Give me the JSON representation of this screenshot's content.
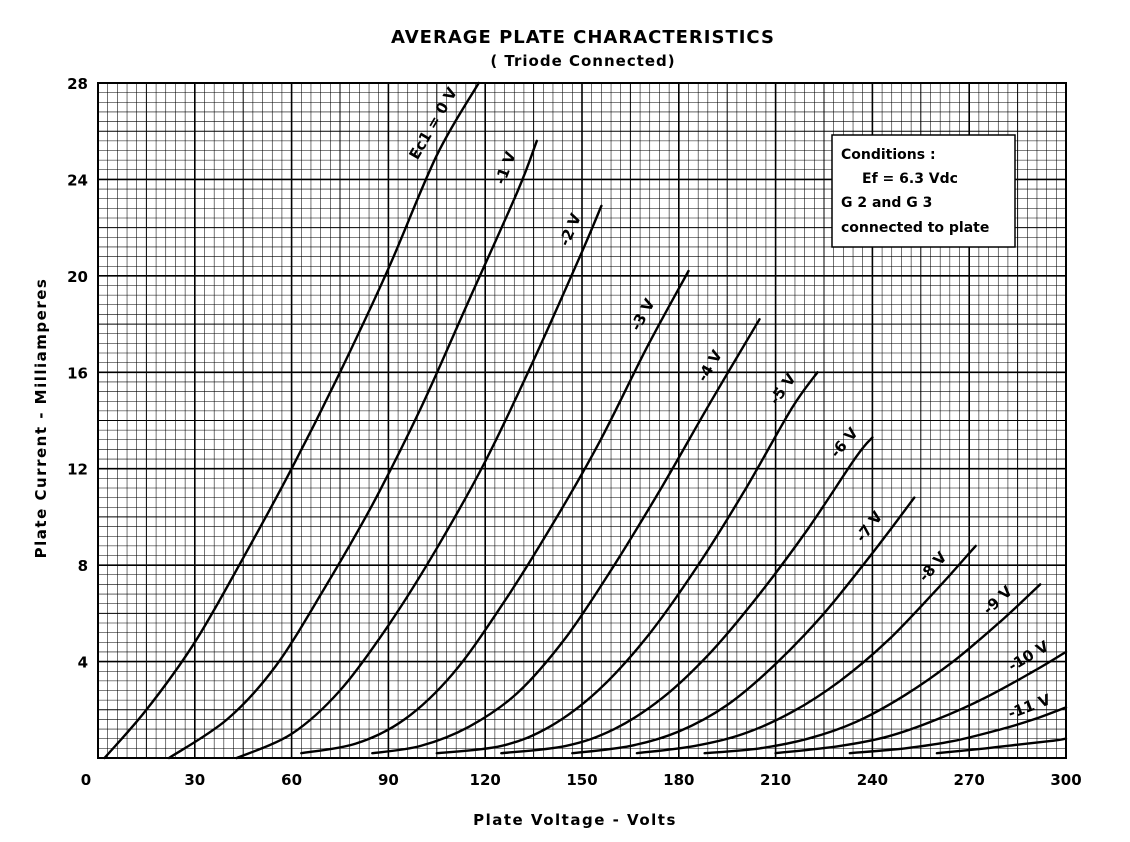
{
  "chart_data": {
    "type": "line",
    "title": "AVERAGE PLATE CHARACTERISTICS",
    "subtitle": "( Triode Connected)",
    "xlabel": "Plate Voltage - Volts",
    "ylabel": "Plate Current - Milliamperes",
    "xlim": [
      0,
      300
    ],
    "ylim": [
      0,
      28
    ],
    "x_ticks": [
      "0",
      "30",
      "60",
      "90",
      "120",
      "150",
      "180",
      "210",
      "240",
      "270",
      "300"
    ],
    "y_ticks": [
      "4",
      "8",
      "12",
      "16",
      "20",
      "24",
      "28"
    ],
    "grid": true,
    "annotation": {
      "heading": "Conditions :",
      "lines": [
        "Ef = 6.3 Vdc",
        "G 2 and G 3",
        "connected to plate"
      ]
    },
    "series": [
      {
        "name": "Ec1 = 0 V",
        "points": [
          [
            2,
            0
          ],
          [
            15,
            2
          ],
          [
            30,
            4.8
          ],
          [
            45,
            8.3
          ],
          [
            60,
            12
          ],
          [
            75,
            16
          ],
          [
            90,
            20.3
          ],
          [
            105,
            25
          ],
          [
            118,
            28
          ]
        ]
      },
      {
        "name": "-1 V",
        "points": [
          [
            22,
            0
          ],
          [
            40,
            1.6
          ],
          [
            55,
            3.8
          ],
          [
            70,
            7
          ],
          [
            85,
            10.5
          ],
          [
            100,
            14.5
          ],
          [
            115,
            19
          ],
          [
            130,
            23.5
          ],
          [
            136,
            25.6
          ]
        ]
      },
      {
        "name": "-2 V",
        "points": [
          [
            43,
            0
          ],
          [
            60,
            1
          ],
          [
            75,
            2.8
          ],
          [
            90,
            5.5
          ],
          [
            105,
            8.7
          ],
          [
            120,
            12.3
          ],
          [
            135,
            16.5
          ],
          [
            150,
            21
          ],
          [
            156,
            22.9
          ]
        ]
      },
      {
        "name": "-3 V",
        "points": [
          [
            63,
            0.2
          ],
          [
            80,
            0.6
          ],
          [
            95,
            1.6
          ],
          [
            110,
            3.5
          ],
          [
            125,
            6.3
          ],
          [
            140,
            9.5
          ],
          [
            155,
            13
          ],
          [
            170,
            17
          ],
          [
            183,
            20.2
          ]
        ]
      },
      {
        "name": "-4 V",
        "points": [
          [
            85,
            0.2
          ],
          [
            100,
            0.5
          ],
          [
            115,
            1.3
          ],
          [
            130,
            2.7
          ],
          [
            145,
            5
          ],
          [
            160,
            8
          ],
          [
            175,
            11.3
          ],
          [
            190,
            14.8
          ],
          [
            205,
            18.2
          ]
        ]
      },
      {
        "name": "-5 V",
        "points": [
          [
            105,
            0.2
          ],
          [
            125,
            0.5
          ],
          [
            140,
            1.3
          ],
          [
            155,
            2.8
          ],
          [
            170,
            5
          ],
          [
            185,
            7.8
          ],
          [
            200,
            11
          ],
          [
            215,
            14.5
          ],
          [
            223,
            16
          ]
        ]
      },
      {
        "name": "-6 V",
        "points": [
          [
            125,
            0.2
          ],
          [
            145,
            0.5
          ],
          [
            160,
            1.2
          ],
          [
            175,
            2.5
          ],
          [
            190,
            4.4
          ],
          [
            205,
            6.8
          ],
          [
            220,
            9.5
          ],
          [
            235,
            12.5
          ],
          [
            240,
            13.3
          ]
        ]
      },
      {
        "name": "-7 V",
        "points": [
          [
            147,
            0.2
          ],
          [
            165,
            0.5
          ],
          [
            180,
            1.1
          ],
          [
            195,
            2.2
          ],
          [
            210,
            3.9
          ],
          [
            225,
            6
          ],
          [
            240,
            8.5
          ],
          [
            253,
            10.8
          ]
        ]
      },
      {
        "name": "-8 V",
        "points": [
          [
            167,
            0.2
          ],
          [
            185,
            0.5
          ],
          [
            200,
            1
          ],
          [
            215,
            1.9
          ],
          [
            230,
            3.2
          ],
          [
            245,
            4.9
          ],
          [
            260,
            7
          ],
          [
            272,
            8.8
          ]
        ]
      },
      {
        "name": "-9 V",
        "points": [
          [
            188,
            0.2
          ],
          [
            205,
            0.4
          ],
          [
            220,
            0.8
          ],
          [
            235,
            1.5
          ],
          [
            250,
            2.6
          ],
          [
            265,
            4
          ],
          [
            280,
            5.7
          ],
          [
            292,
            7.2
          ]
        ]
      },
      {
        "name": "-10 V",
        "points": [
          [
            210,
            0.2
          ],
          [
            230,
            0.5
          ],
          [
            245,
            0.9
          ],
          [
            260,
            1.6
          ],
          [
            275,
            2.5
          ],
          [
            290,
            3.6
          ],
          [
            300,
            4.4
          ]
        ]
      },
      {
        "name": "-11 V",
        "points": [
          [
            233,
            0.2
          ],
          [
            250,
            0.4
          ],
          [
            265,
            0.7
          ],
          [
            280,
            1.2
          ],
          [
            290,
            1.6
          ],
          [
            300,
            2.1
          ]
        ]
      },
      {
        "name": "",
        "points": [
          [
            260,
            0.2
          ],
          [
            275,
            0.4
          ],
          [
            285,
            0.55
          ],
          [
            295,
            0.7
          ],
          [
            300,
            0.8
          ]
        ]
      }
    ]
  }
}
